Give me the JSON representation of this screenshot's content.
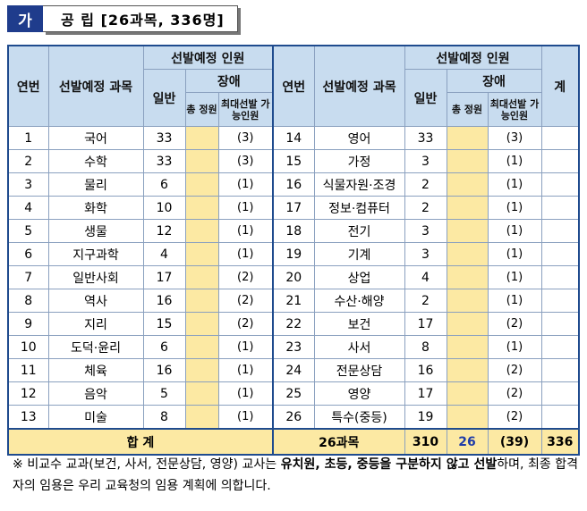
{
  "header": {
    "badge": "가",
    "title": "공 립 [26과목, 336명]"
  },
  "table": {
    "h_no": "연번",
    "h_subject": "선발예정 과목",
    "h_plan": "선발예정 인원",
    "h_general": "일반",
    "h_disabled": "장애",
    "h_total": "총 정원",
    "h_max": "최대선발 가능인원",
    "h_sum": "계",
    "left": [
      {
        "no": "1",
        "subject": "국어",
        "general": "33",
        "max": "(3)"
      },
      {
        "no": "2",
        "subject": "수학",
        "general": "33",
        "max": "(3)"
      },
      {
        "no": "3",
        "subject": "물리",
        "general": "6",
        "max": "(1)"
      },
      {
        "no": "4",
        "subject": "화학",
        "general": "10",
        "max": "(1)"
      },
      {
        "no": "5",
        "subject": "생물",
        "general": "12",
        "max": "(1)"
      },
      {
        "no": "6",
        "subject": "지구과학",
        "general": "4",
        "max": "(1)"
      },
      {
        "no": "7",
        "subject": "일반사회",
        "general": "17",
        "max": "(2)"
      },
      {
        "no": "8",
        "subject": "역사",
        "general": "16",
        "max": "(2)"
      },
      {
        "no": "9",
        "subject": "지리",
        "general": "15",
        "max": "(2)"
      },
      {
        "no": "10",
        "subject": "도덕·윤리",
        "general": "6",
        "max": "(1)"
      },
      {
        "no": "11",
        "subject": "체육",
        "general": "16",
        "max": "(1)"
      },
      {
        "no": "12",
        "subject": "음악",
        "general": "5",
        "max": "(1)"
      },
      {
        "no": "13",
        "subject": "미술",
        "general": "8",
        "max": "(1)"
      }
    ],
    "right": [
      {
        "no": "14",
        "subject": "영어",
        "general": "33",
        "max": "(3)"
      },
      {
        "no": "15",
        "subject": "가정",
        "general": "3",
        "max": "(1)"
      },
      {
        "no": "16",
        "subject": "식물자원·조경",
        "general": "2",
        "max": "(1)"
      },
      {
        "no": "17",
        "subject": "정보·컴퓨터",
        "general": "2",
        "max": "(1)"
      },
      {
        "no": "18",
        "subject": "전기",
        "general": "3",
        "max": "(1)"
      },
      {
        "no": "19",
        "subject": "기계",
        "general": "3",
        "max": "(1)"
      },
      {
        "no": "20",
        "subject": "상업",
        "general": "4",
        "max": "(1)"
      },
      {
        "no": "21",
        "subject": "수산·해양",
        "general": "2",
        "max": "(1)"
      },
      {
        "no": "22",
        "subject": "보건",
        "general": "17",
        "max": "(2)"
      },
      {
        "no": "23",
        "subject": "사서",
        "general": "8",
        "max": "(1)"
      },
      {
        "no": "24",
        "subject": "전문상담",
        "general": "16",
        "max": "(2)"
      },
      {
        "no": "25",
        "subject": "영양",
        "general": "17",
        "max": "(2)"
      },
      {
        "no": "26",
        "subject": "특수(중등)",
        "general": "19",
        "max": "(2)"
      }
    ],
    "footer": {
      "label": "합 계",
      "subjects": "26과목",
      "general": "310",
      "total": "26",
      "max": "(39)",
      "sum": "336"
    }
  },
  "note": {
    "mark": "※",
    "part1": "비교수 교과(보건, 사서, 전문상담, 영양) 교사는",
    "bold": "유치원, 초등, 중등을 구분하지 않고 선발",
    "part2": "하며, 최종 합격자의 임용은 우리 교육청의 임용 계획에 의합니다."
  }
}
